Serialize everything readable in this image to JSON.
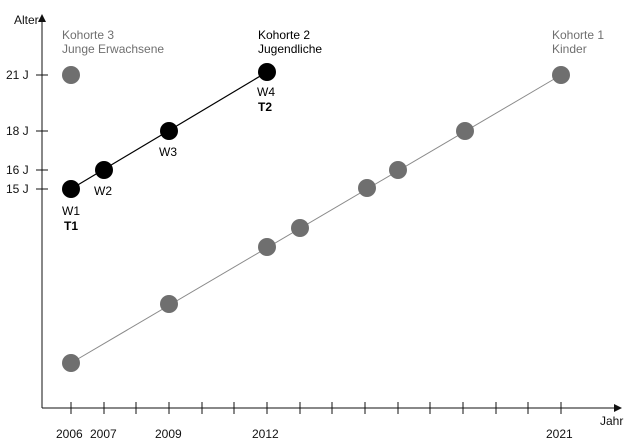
{
  "axes": {
    "y_label": "Alter",
    "x_label": "Jahr",
    "y_ticks": [
      "21 J",
      "18 J",
      "16 J",
      "15 J"
    ],
    "x_ticks": [
      "2006",
      "2007",
      "2009",
      "2012",
      "2021"
    ]
  },
  "cohorts": [
    {
      "title": "Kohorte 3",
      "subtitle": "Junge Erwachsene",
      "color": "#6f6f6f"
    },
    {
      "title": "Kohorte 2",
      "subtitle": "Jugendliche",
      "color": "#000000"
    },
    {
      "title": "Kohorte 1",
      "subtitle": "Kinder",
      "color": "#6f6f6f"
    }
  ],
  "waves": {
    "w1": "W1",
    "w1_tag": "T1",
    "w2": "W2",
    "w3": "W3",
    "w4": "W4",
    "w4_tag": "T2"
  },
  "colors": {
    "black_points": "#000000",
    "gray_points": "#6f6f6f",
    "gray_line": "#8a8a8a"
  }
}
